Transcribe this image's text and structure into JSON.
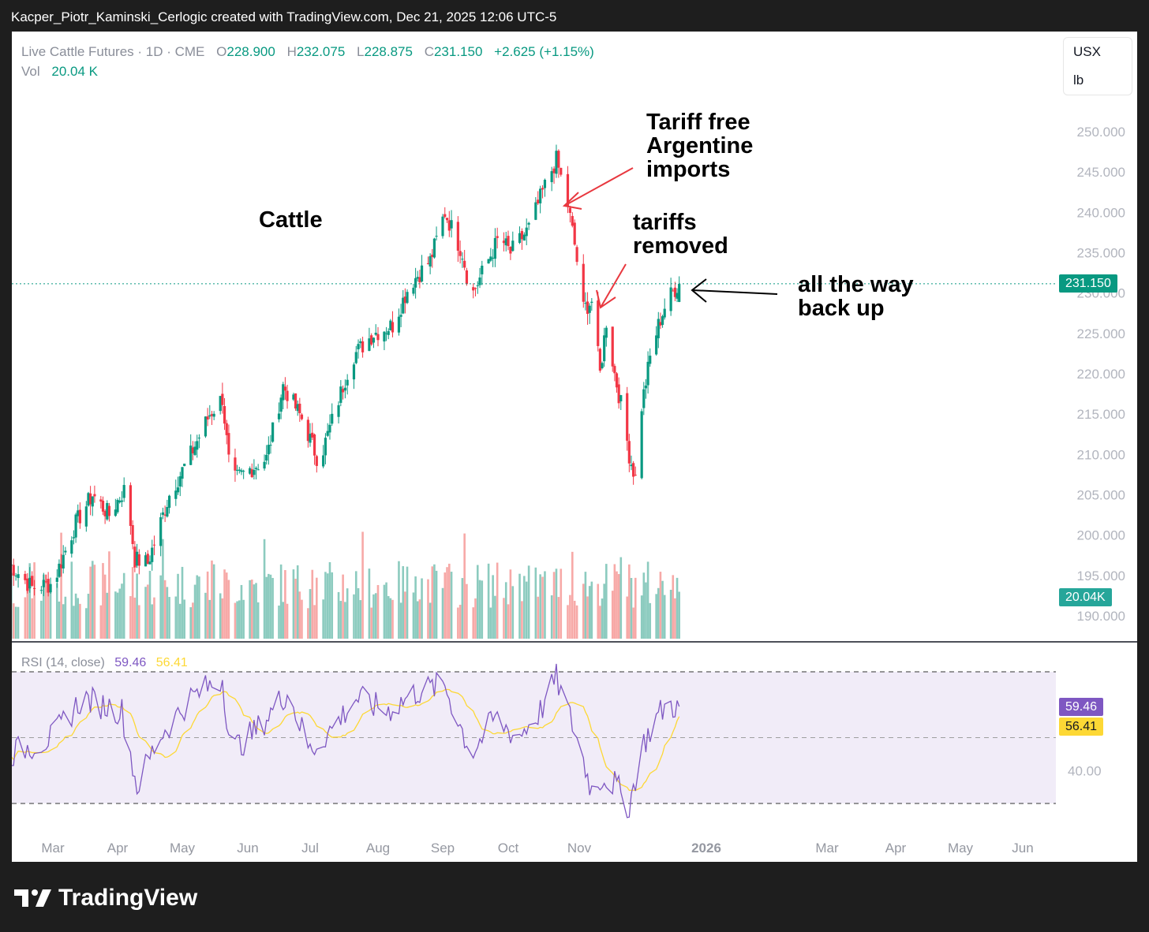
{
  "caption": "Kacper_Piotr_Kaminski_Cerlogic created with TradingView.com, Dec 21, 2025 12:06 UTC-5",
  "legend": {
    "symbol": "Live Cattle Futures · 1D · CME",
    "o_label": "O",
    "o": "228.900",
    "h_label": "H",
    "h": "232.075",
    "l_label": "L",
    "l": "228.875",
    "c_label": "C",
    "c": "231.150",
    "change": "+2.625 (+1.15%)",
    "vol_label": "Vol",
    "vol": "20.04 K"
  },
  "units": {
    "currency": "USX",
    "unit": "lb"
  },
  "price_axis": [
    "250.000",
    "245.000",
    "240.000",
    "235.000",
    "230.000",
    "225.000",
    "220.000",
    "215.000",
    "210.000",
    "205.000",
    "200.000",
    "195.000",
    "190.000"
  ],
  "last_price_tag": "231.150",
  "volume_tag": "20.04K",
  "rsi": {
    "label": "RSI (14, close)",
    "value": "59.46",
    "ma": "56.41",
    "axis_label": "40.00"
  },
  "time_axis": [
    "Mar",
    "Apr",
    "May",
    "Jun",
    "Jul",
    "Aug",
    "Sep",
    "Oct",
    "Nov",
    "2026",
    "Mar",
    "Apr",
    "May",
    "Jun"
  ],
  "annotations": {
    "cattle": "Cattle",
    "argentine": "Tariff free\nArgentine\nimports",
    "tariffs": "tariffs\nremoved",
    "back_up": "all the way\nback up"
  },
  "brand": "TradingView",
  "colors": {
    "up": "#089981",
    "down": "#f23645",
    "rsi": "#7e57c2",
    "rsi_ma": "#fdd835",
    "vol_up": "#8ccbbf",
    "vol_down": "#f7a9a7"
  },
  "chart_data": {
    "type": "candlestick",
    "symbol": "Live Cattle Futures",
    "interval": "1D",
    "exchange": "CME",
    "ylim": [
      189,
      253
    ],
    "closes_anchor": [
      [
        "2025-02-10",
        196.5
      ],
      [
        "2025-02-20",
        193.5
      ],
      [
        "2025-03-01",
        194.0
      ],
      [
        "2025-03-12",
        201.5
      ],
      [
        "2025-03-20",
        205.0
      ],
      [
        "2025-03-28",
        202.5
      ],
      [
        "2025-04-05",
        206.0
      ],
      [
        "2025-04-09",
        197.0
      ],
      [
        "2025-04-15",
        196.5
      ],
      [
        "2025-04-25",
        205.0
      ],
      [
        "2025-05-05",
        210.0
      ],
      [
        "2025-05-14",
        215.0
      ],
      [
        "2025-05-20",
        217.0
      ],
      [
        "2025-05-24",
        206.5
      ],
      [
        "2025-06-01",
        208.0
      ],
      [
        "2025-06-10",
        209.5
      ],
      [
        "2025-06-18",
        218.5
      ],
      [
        "2025-06-28",
        214.0
      ],
      [
        "2025-07-05",
        209.0
      ],
      [
        "2025-07-12",
        215.0
      ],
      [
        "2025-07-20",
        222.0
      ],
      [
        "2025-07-30",
        225.0
      ],
      [
        "2025-08-08",
        226.0
      ],
      [
        "2025-08-16",
        231.0
      ],
      [
        "2025-08-26",
        234.0
      ],
      [
        "2025-09-02",
        240.0
      ],
      [
        "2025-09-10",
        235.0
      ],
      [
        "2025-09-14",
        229.5
      ],
      [
        "2025-09-20",
        233.0
      ],
      [
        "2025-09-27",
        237.0
      ],
      [
        "2025-10-02",
        235.0
      ],
      [
        "2025-10-10",
        238.0
      ],
      [
        "2025-10-18",
        244.0
      ],
      [
        "2025-10-22",
        246.5
      ],
      [
        "2025-10-27",
        241.0
      ],
      [
        "2025-10-30",
        236.0
      ],
      [
        "2025-11-03",
        228.0
      ],
      [
        "2025-11-07",
        229.0
      ],
      [
        "2025-11-11",
        220.0
      ],
      [
        "2025-11-14",
        226.5
      ],
      [
        "2025-11-18",
        220.0
      ],
      [
        "2025-11-22",
        215.0
      ],
      [
        "2025-11-25",
        210.0
      ],
      [
        "2025-11-28",
        207.0
      ],
      [
        "2025-12-01",
        216.0
      ],
      [
        "2025-12-05",
        222.0
      ],
      [
        "2025-12-09",
        226.0
      ],
      [
        "2025-12-13",
        229.0
      ],
      [
        "2025-12-17",
        230.5
      ],
      [
        "2025-12-19",
        231.15
      ]
    ],
    "last_bar": {
      "date": "2025-12-19",
      "open": 228.9,
      "high": 232.075,
      "low": 228.875,
      "close": 231.15,
      "volume": "20.04K"
    },
    "rsi_anchor": [
      [
        "2025-02-10",
        45
      ],
      [
        "2025-03-01",
        50
      ],
      [
        "2025-03-15",
        62
      ],
      [
        "2025-04-03",
        58
      ],
      [
        "2025-04-10",
        35
      ],
      [
        "2025-04-20",
        50
      ],
      [
        "2025-05-05",
        62
      ],
      [
        "2025-05-20",
        68
      ],
      [
        "2025-05-24",
        46
      ],
      [
        "2025-06-05",
        52
      ],
      [
        "2025-06-20",
        64
      ],
      [
        "2025-07-01",
        46
      ],
      [
        "2025-07-10",
        52
      ],
      [
        "2025-07-22",
        62
      ],
      [
        "2025-08-05",
        58
      ],
      [
        "2025-08-20",
        64
      ],
      [
        "2025-09-02",
        66
      ],
      [
        "2025-09-14",
        45
      ],
      [
        "2025-09-25",
        56
      ],
      [
        "2025-10-05",
        50
      ],
      [
        "2025-10-15",
        58
      ],
      [
        "2025-10-22",
        68
      ],
      [
        "2025-10-30",
        52
      ],
      [
        "2025-11-07",
        34
      ],
      [
        "2025-11-12",
        38
      ],
      [
        "2025-11-18",
        36
      ],
      [
        "2025-11-25",
        29
      ],
      [
        "2025-12-01",
        47
      ],
      [
        "2025-12-08",
        56
      ],
      [
        "2025-12-13",
        60
      ],
      [
        "2025-12-19",
        59.46
      ]
    ],
    "rsi_ma_last": 56.41,
    "rsi_bands": [
      70,
      50,
      30
    ]
  }
}
